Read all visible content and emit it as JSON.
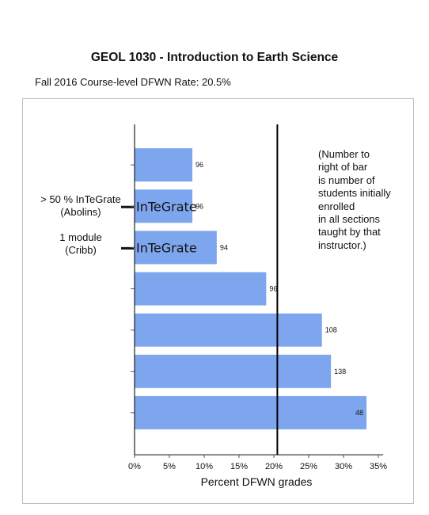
{
  "chart_data": {
    "type": "bar",
    "orientation": "horizontal",
    "title": "GEOL 1030 - Introduction to Earth Science",
    "subtitle": "Fall 2016 Course-level DFWN Rate: 20.5%",
    "xlabel": "Percent DFWN grades",
    "xlim": [
      0,
      35
    ],
    "x_ticks": [
      "0%",
      "5%",
      "10%",
      "15%",
      "20%",
      "25%",
      "30%",
      "35%"
    ],
    "values": [
      8.3,
      8.3,
      11.8,
      18.9,
      26.9,
      28.2,
      33.3
    ],
    "data_labels": [
      "96",
      "96",
      "94",
      "96",
      "108",
      "138",
      "48"
    ],
    "bar_labels": [
      "",
      "InTeGrate",
      "InTeGrate",
      "",
      "",
      "",
      ""
    ],
    "reference_line": 20.5,
    "bar_color": "#7ea6ee",
    "grid": false
  },
  "annotations": {
    "integrate_majority": "> 50 % InTeGrate\n(Abolins)",
    "one_module": "1 module\n(Cribb)",
    "note": "(Number to\nright of bar\nis number of\nstudents initially\nenrolled\nin all sections\ntaught by that\ninstructor.)"
  }
}
